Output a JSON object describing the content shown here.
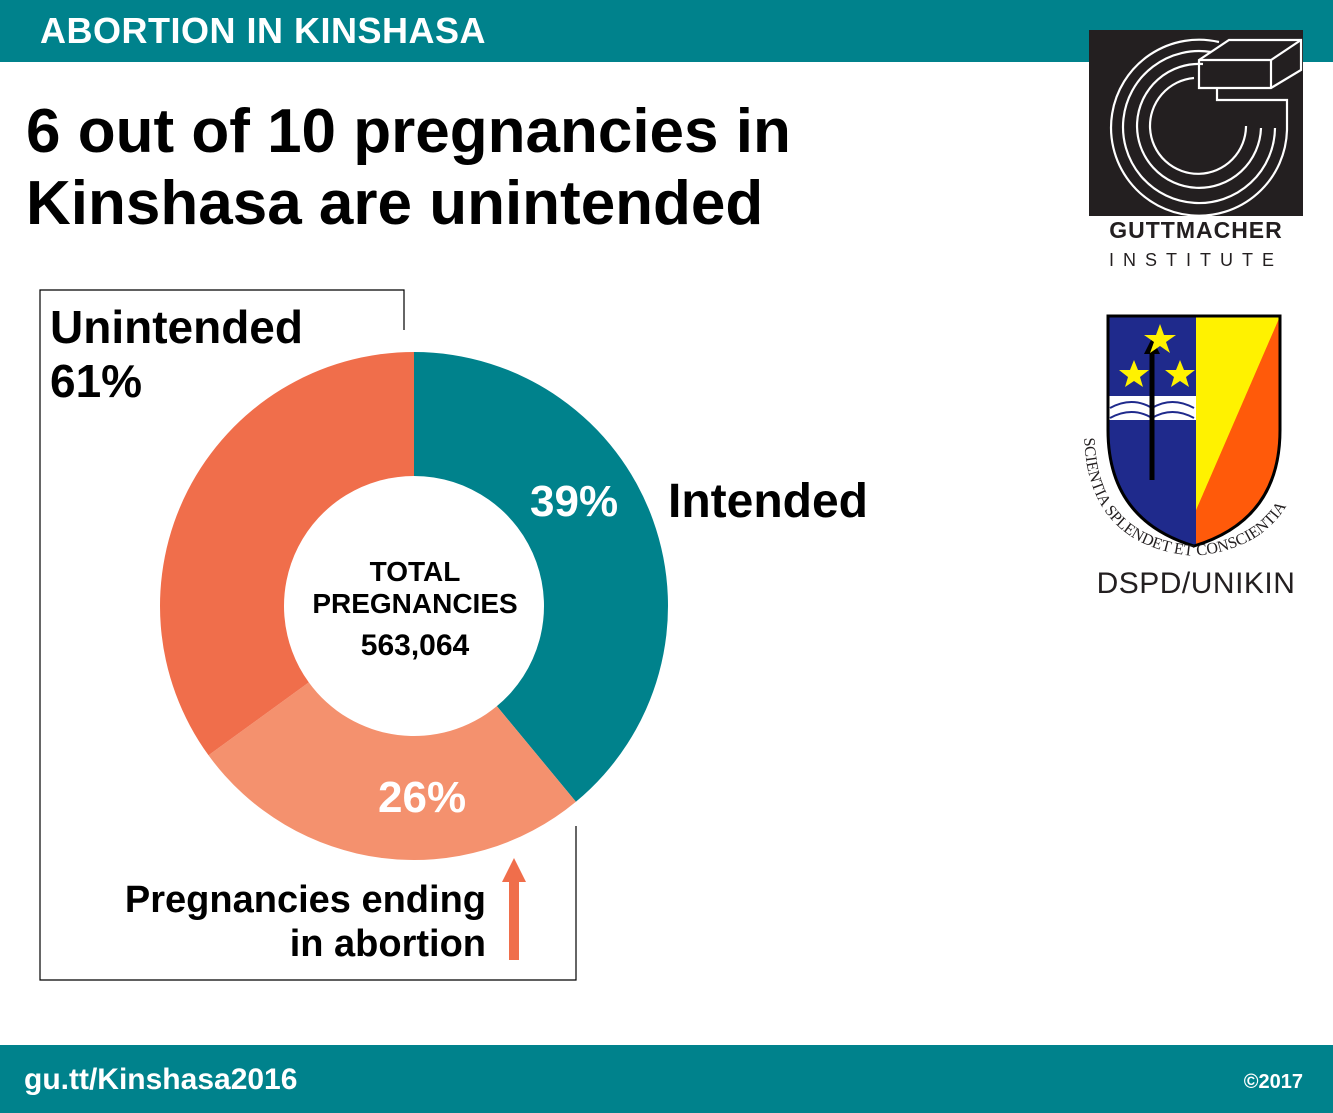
{
  "header": {
    "kicker": "ABORTION IN KINSHASA"
  },
  "headline": {
    "line1": "6 out of 10 pregnancies in",
    "line2": "Kinshasa are unintended"
  },
  "logos": {
    "guttmacher_name": "GUTTMACHER",
    "guttmacher_sub": "INSTITUTE",
    "crest_motto": "SCIENTIA SPLENDET ET CONSCIENTIA",
    "crest_label": "DSPD/UNIKIN"
  },
  "chart_data": {
    "type": "pie",
    "subtype": "donut",
    "center_label_line1": "TOTAL",
    "center_label_line2": "PREGNANCIES",
    "total": "563,064",
    "slices": [
      {
        "label": "Intended",
        "value": 39,
        "value_label": "39%",
        "color": "#00828c"
      },
      {
        "label": "Pregnancies ending in abortion",
        "value": 26,
        "value_label": "26%",
        "color": "#f4916e"
      },
      {
        "label": "",
        "value": 35,
        "value_label": "",
        "color": "#f06e4b"
      }
    ],
    "group_annotation": {
      "label_line1": "Unintended",
      "label_line2": "61%"
    },
    "abortion_label_line1": "Pregnancies ending",
    "abortion_label_line2": "in abortion"
  },
  "footer": {
    "url": "gu.tt/Kinshasa2016",
    "copyright": "©2017"
  },
  "colors": {
    "teal": "#00828c",
    "coral_dark": "#f06e4b",
    "coral_light": "#f4916e",
    "black": "#000000"
  }
}
